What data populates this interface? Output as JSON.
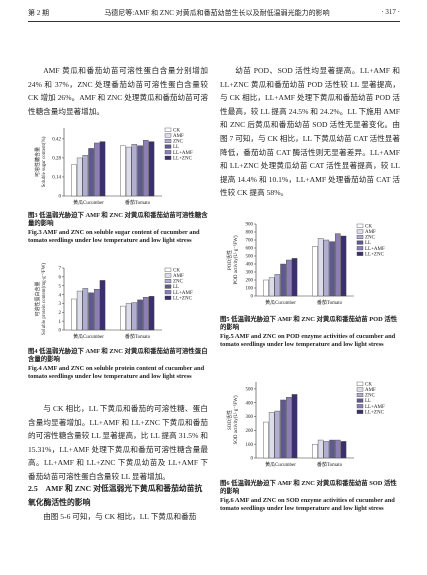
{
  "header": {
    "issue": "第 2 期",
    "title": "马德尼等:AMF 和 ZNC 对黄瓜和番茄幼苗生长以及耐低温弱光能力的影响",
    "page": "· 317 ·"
  },
  "left_column": {
    "paragraph_1": "AMF 黄瓜和番茄幼苗可溶性蛋白含量分别增加 24% 和 37%，ZNC 处理番茄幼苗可溶性蛋白含量较 CK 增加 26%。AMF 和 ZNC 处理黄瓜和番茄幼苗可溶性糖含量均显著增加。",
    "paragraph_2": "与 CK 相比，LL 下黄瓜和番茄的可溶性糖、蛋白含量均显著增加。LL+AMF 和 LL+ZNC 下黄瓜和番茄的可溶性糖含量较 LL 显著提高，比 LL 提高 31.5% 和 15.31%，LL+AMF 处理下黄瓜和番茄可溶性糖含量最高。LL+AMF 和 LL+ZNC 下黄瓜幼苗及 LL+AMF 下番茄幼苗可溶性蛋白含量较 LL 显著增加。",
    "heading": "2.5　AMF 和 ZNC 对低温弱光下黄瓜和番茄幼苗抗氧化酶活性的影响",
    "paragraph_3": "由图 5-6 可知，与 CK 相比，LL 下黄瓜和番茄"
  },
  "right_column": {
    "paragraph_1": "幼苗 POD、SOD 活性均显著提高。LL+AMF 和 LL+ZNC 黄瓜和番茄幼苗 POD 活性较 LL 显著提高，与 CK 相比，LL+AMF 处理下黄瓜和番茄幼苗 POD 活性最高，较 LL 提高 24.5% 和 24.2%。LL 下施用 AMF 和 ZNC 后黄瓜和番茄幼苗 SOD 活性无显著变化。由图 7 可知，与 CK 相比，LL 下黄瓜幼苗 CAT 活性显著降低，番茄幼苗 CAT 酶活性则无显著差异。LL+AMF 和 LL+ZNC 处理黄瓜幼苗 CAT 活性显著提高，较 LL 提高 14.4% 和 10.1%，LL+AMF 处理番茄幼苗 CAT 活性较 CK 提高 58%。"
  },
  "figures": [
    {
      "caption_cn": "图3 低温弱光胁迫下 AMF 和 ZNC 对黄瓜和番茄幼苗可溶性糖含量的影响",
      "caption_en": "Fig.3 AMF and ZNC on soluble sugar content of cucumber and tomato seedlings under low temperature and low light stress",
      "chart": {
        "type": "bar",
        "ylabel_cn": "可溶性糖含量",
        "ylabel_en": "Soluble sugar content(%)",
        "categories": [
          "黄瓜Cucumber",
          "番茄Tomato"
        ],
        "ylim": [
          0,
          0.5
        ],
        "yticks": [
          0,
          0.14,
          0.28,
          0.42
        ],
        "series": [
          {
            "name": "CK",
            "color": "#ffffff",
            "values": [
              0.23,
              0.37
            ]
          },
          {
            "name": "AMF",
            "color": "#dcdcea",
            "values": [
              0.28,
              0.36
            ]
          },
          {
            "name": "ZNC",
            "color": "#b0aed0",
            "values": [
              0.3,
              0.38
            ]
          },
          {
            "name": "LL",
            "color": "#5e5a8e",
            "values": [
              0.35,
              0.37
            ]
          },
          {
            "name": "LL+AMF",
            "color": "#8c7fb8",
            "values": [
              0.39,
              0.41
            ]
          },
          {
            "name": "LL+ZNC",
            "color": "#3c2f6e",
            "values": [
              0.4,
              0.4
            ]
          }
        ]
      }
    },
    {
      "caption_cn": "图4 低温弱光胁迫下 AMF 和 ZNC 对黄瓜和番茄幼苗可溶性蛋白含量的影响",
      "caption_en": "Fig.4 AMF and ZNC on soluble protein content of cucumber and tomato seedlings under low temperature and low light stress",
      "chart": {
        "type": "bar",
        "ylabel_cn": "可溶性蛋白含量",
        "ylabel_en": "Soluble protein content(mg·g⁻¹FW)",
        "categories": [
          "黄瓜Cucumber",
          "番茄Tomato"
        ],
        "ylim": [
          0,
          7
        ],
        "yticks": [
          0,
          1,
          2,
          3,
          4,
          5,
          6,
          7
        ],
        "series": [
          {
            "name": "CK",
            "color": "#ffffff",
            "values": [
              3.5,
              2.7
            ]
          },
          {
            "name": "AMF",
            "color": "#dcdcea",
            "values": [
              4.4,
              3.0
            ]
          },
          {
            "name": "ZNC",
            "color": "#b0aed0",
            "values": [
              4.7,
              3.1
            ]
          },
          {
            "name": "LL",
            "color": "#5e5a8e",
            "values": [
              4.2,
              3.4
            ]
          },
          {
            "name": "LL+AMF",
            "color": "#8c7fb8",
            "values": [
              4.6,
              3.7
            ]
          },
          {
            "name": "LL+ZNC",
            "color": "#3c2f6e",
            "values": [
              5.6,
              3.8
            ]
          }
        ]
      }
    },
    {
      "caption_cn": "图5 低温弱光胁迫下 AMF 和 ZNC 对黄瓜和番茄幼苗 POD 活性的影响",
      "caption_en": "Fig.5 AMF and ZNC on POD enzyme activities of cucumber and tomato seedlings under low temperature and low light stress",
      "chart": {
        "type": "bar",
        "ylabel_cn": "POD活性",
        "ylabel_en": "POD activity(U·g⁻¹FW)",
        "categories": [
          "黄瓜Cucumber",
          "番茄Tomato"
        ],
        "ylim": [
          0,
          900
        ],
        "yticks": [
          0,
          100,
          200,
          300,
          400,
          500,
          600,
          700,
          800,
          900
        ],
        "series": [
          {
            "name": "CK",
            "color": "#ffffff",
            "values": [
              200,
              620
            ]
          },
          {
            "name": "AMF",
            "color": "#dcdcea",
            "values": [
              230,
              720
            ]
          },
          {
            "name": "ZNC",
            "color": "#b0aed0",
            "values": [
              270,
              700
            ]
          },
          {
            "name": "LL",
            "color": "#5e5a8e",
            "values": [
              400,
              680
            ]
          },
          {
            "name": "LL+AMF",
            "color": "#8c7fb8",
            "values": [
              450,
              780
            ]
          },
          {
            "name": "LL+ZNC",
            "color": "#3c2f6e",
            "values": [
              470,
              750
            ]
          }
        ]
      }
    },
    {
      "caption_cn": "图6 低温弱光胁迫下 AMF 和 ZNC 对黄瓜和番茄幼苗 SOD 活性的影响",
      "caption_en": "Fig.6 AMF and ZNC on SOD enzyme activities of cucumber and tomato seedlings under low temperature and low light stress",
      "chart": {
        "type": "bar",
        "ylabel_cn": "SOD活性",
        "ylabel_en": "SOD activity(U·g⁻¹FW)",
        "categories": [
          "黄瓜Cucumber",
          "番茄Tomato"
        ],
        "ylim": [
          0,
          550
        ],
        "yticks": [
          0,
          100,
          200,
          300,
          400,
          500
        ],
        "series": [
          {
            "name": "CK",
            "color": "#ffffff",
            "values": [
              260,
              100
            ]
          },
          {
            "name": "AMF",
            "color": "#dcdcea",
            "values": [
              330,
              130
            ]
          },
          {
            "name": "ZNC",
            "color": "#b0aed0",
            "values": [
              340,
              120
            ]
          },
          {
            "name": "LL",
            "color": "#5e5a8e",
            "values": [
              420,
              130
            ]
          },
          {
            "name": "LL+AMF",
            "color": "#8c7fb8",
            "values": [
              440,
              130
            ]
          },
          {
            "name": "LL+ZNC",
            "color": "#3c2f6e",
            "values": [
              460,
              120
            ]
          }
        ]
      }
    }
  ]
}
